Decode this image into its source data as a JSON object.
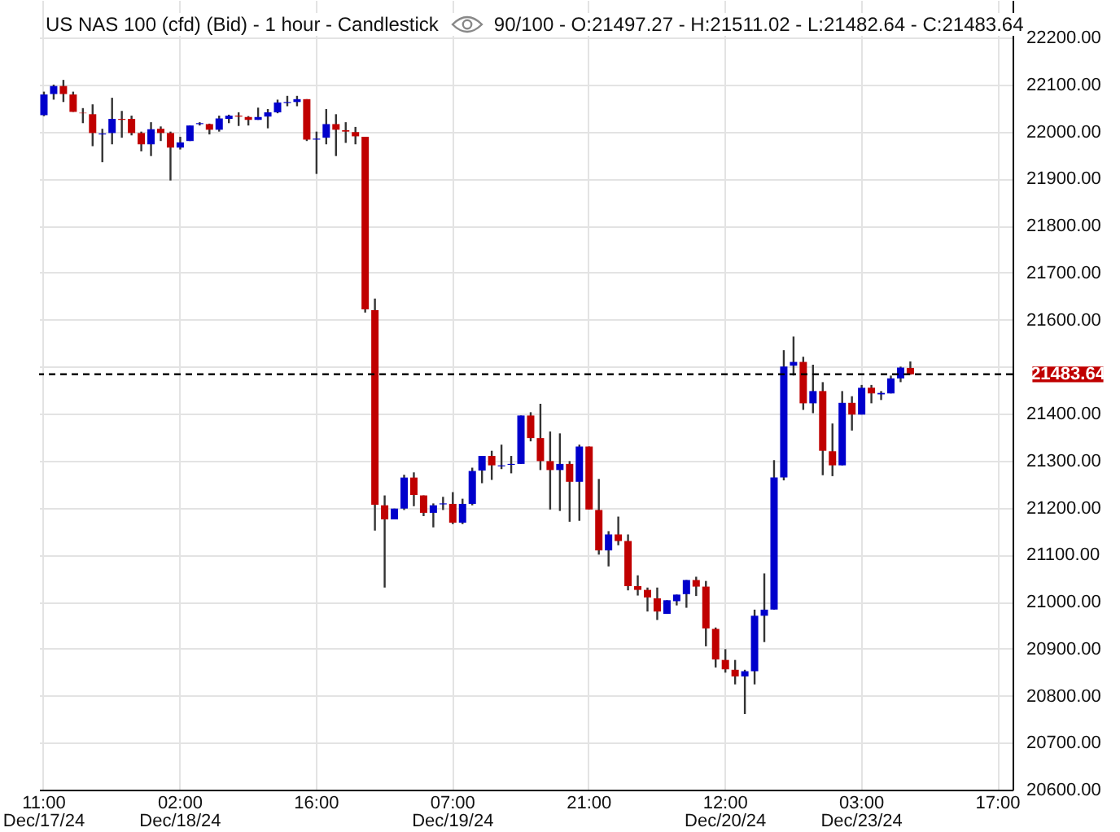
{
  "chart_data": {
    "type": "candlestick",
    "title": "US NAS 100 (cfd) (Bid) - 1 hour - Candlestick",
    "subtitle": "90/100 - O:21497.27 - H:21511.02 - L:21482.64 - C:21483.64",
    "categories": [
      "11:00\nDec/17/24",
      null,
      null,
      null,
      null,
      null,
      null,
      null,
      null,
      null,
      null,
      null,
      null,
      null,
      "02:00\nDec/18/24",
      null,
      null,
      null,
      null,
      null,
      null,
      null,
      null,
      null,
      null,
      null,
      null,
      null,
      "16:00",
      null,
      null,
      null,
      null,
      null,
      null,
      null,
      null,
      null,
      null,
      null,
      null,
      null,
      "07:00\nDec/19/24",
      null,
      null,
      null,
      null,
      null,
      null,
      null,
      null,
      null,
      null,
      null,
      null,
      null,
      "21:00",
      null,
      null,
      null,
      null,
      null,
      null,
      null,
      null,
      null,
      null,
      null,
      null,
      null,
      "12:00\nDec/20/24",
      null,
      null,
      null,
      null,
      null,
      null,
      null,
      null,
      null,
      null,
      null,
      null,
      null,
      "03:00\nDec/23/24",
      null,
      null,
      null,
      null,
      null,
      null,
      null,
      null,
      null,
      null,
      null,
      null,
      null,
      "17:00",
      null
    ],
    "ohlc": [
      [
        22035,
        22085,
        22033,
        22079
      ],
      [
        22080,
        22100,
        22068,
        22097
      ],
      [
        22097,
        22110,
        22063,
        22080
      ],
      [
        22079,
        22085,
        22042,
        22042
      ],
      [
        22040,
        22050,
        22018,
        22039
      ],
      [
        22037,
        22058,
        21969,
        21997
      ],
      [
        21994,
        22006,
        21935,
        21996
      ],
      [
        21997,
        22072,
        21973,
        22027
      ],
      [
        22027,
        22044,
        21987,
        22025
      ],
      [
        22027,
        22034,
        21992,
        21997
      ],
      [
        21997,
        22000,
        21958,
        21973
      ],
      [
        21973,
        22020,
        21948,
        22005
      ],
      [
        22006,
        22011,
        21980,
        21997
      ],
      [
        21997,
        22000,
        21896,
        21966
      ],
      [
        21966,
        21989,
        21962,
        21977
      ],
      [
        21980,
        22013,
        21980,
        22013
      ],
      [
        22016,
        22020,
        22013,
        22018
      ],
      [
        22016,
        22017,
        21994,
        22004
      ],
      [
        22004,
        22034,
        22000,
        22028
      ],
      [
        22027,
        22036,
        22018,
        22034
      ],
      [
        22034,
        22041,
        22012,
        22032
      ],
      [
        22031,
        22033,
        22013,
        22025
      ],
      [
        22025,
        22051,
        22025,
        22031
      ],
      [
        22032,
        22048,
        22007,
        22041
      ],
      [
        22041,
        22068,
        22039,
        22062
      ],
      [
        22061,
        22076,
        22054,
        22063
      ],
      [
        22063,
        22076,
        22054,
        22069
      ],
      [
        22069,
        22069,
        21980,
        21983
      ],
      [
        21983,
        22000,
        21910,
        21985
      ],
      [
        21987,
        22048,
        21973,
        22016
      ],
      [
        22016,
        22037,
        21948,
        22004
      ],
      [
        22003,
        22020,
        21976,
        22000
      ],
      [
        21999,
        22010,
        21973,
        21990
      ],
      [
        21989,
        21989,
        21615,
        21622
      ],
      [
        21620,
        21645,
        21151,
        21206
      ],
      [
        21205,
        21226,
        21030,
        21175
      ],
      [
        21175,
        21198,
        21175,
        21198
      ],
      [
        21198,
        21270,
        21195,
        21264
      ],
      [
        21264,
        21275,
        21203,
        21227
      ],
      [
        21226,
        21226,
        21182,
        21189
      ],
      [
        21189,
        21209,
        21158,
        21205
      ],
      [
        21207,
        21223,
        21195,
        21209
      ],
      [
        21208,
        21233,
        21165,
        21168
      ],
      [
        21168,
        21219,
        21165,
        21208
      ],
      [
        21208,
        21285,
        21205,
        21278
      ],
      [
        21279,
        21310,
        21252,
        21310
      ],
      [
        21310,
        21321,
        21259,
        21290
      ],
      [
        21288,
        21334,
        21282,
        21290
      ],
      [
        21291,
        21310,
        21273,
        21293
      ],
      [
        21293,
        21396,
        21293,
        21396
      ],
      [
        21396,
        21403,
        21341,
        21348
      ],
      [
        21348,
        21421,
        21280,
        21299
      ],
      [
        21299,
        21362,
        21196,
        21280
      ],
      [
        21280,
        21358,
        21193,
        21293
      ],
      [
        21293,
        21299,
        21170,
        21255
      ],
      [
        21255,
        21334,
        21172,
        21330
      ],
      [
        21330,
        21330,
        21196,
        21196
      ],
      [
        21195,
        21261,
        21100,
        21109
      ],
      [
        21109,
        21150,
        21075,
        21143
      ],
      [
        21143,
        21181,
        21120,
        21129
      ],
      [
        21129,
        21143,
        21024,
        21033
      ],
      [
        21033,
        21056,
        21013,
        21025
      ],
      [
        21025,
        21030,
        20979,
        21009
      ],
      [
        21007,
        21030,
        20961,
        20979
      ],
      [
        20974,
        21003,
        20974,
        21003
      ],
      [
        21001,
        21015,
        20992,
        21015
      ],
      [
        21016,
        21046,
        20987,
        21046
      ],
      [
        21046,
        21053,
        21012,
        21032
      ],
      [
        21032,
        21044,
        20905,
        20943
      ],
      [
        20942,
        20945,
        20860,
        20877
      ],
      [
        20876,
        20899,
        20849,
        20856
      ],
      [
        20855,
        20876,
        20824,
        20841
      ],
      [
        20841,
        20855,
        20761,
        20852
      ],
      [
        20852,
        20983,
        20824,
        20970
      ],
      [
        20970,
        21060,
        20914,
        20983
      ],
      [
        20983,
        21301,
        20983,
        21264
      ],
      [
        21264,
        21535,
        21258,
        21500
      ],
      [
        21502,
        21564,
        21481,
        21510
      ],
      [
        21510,
        21521,
        21408,
        21422
      ],
      [
        21422,
        21504,
        21401,
        21448
      ],
      [
        21448,
        21467,
        21269,
        21321
      ],
      [
        21320,
        21379,
        21267,
        21290
      ],
      [
        21290,
        21448,
        21290,
        21423
      ],
      [
        21423,
        21437,
        21364,
        21398
      ],
      [
        21398,
        21461,
        21398,
        21455
      ],
      [
        21455,
        21461,
        21422,
        21443
      ],
      [
        21441,
        21448,
        21429,
        21444
      ],
      [
        21443,
        21481,
        21443,
        21475
      ],
      [
        21475,
        21500,
        21467,
        21498
      ],
      [
        21497.27,
        21511.02,
        21482.64,
        21483.64
      ],
      null,
      null,
      null,
      null,
      null,
      null,
      null,
      null,
      null,
      null
    ],
    "colors": [
      "#0000cc",
      "#0000cc",
      "#c00000",
      "#c00000",
      "#c00000",
      "#c00000",
      "#0000cc",
      "#0000cc",
      "#c00000",
      "#c00000",
      "#c00000",
      "#0000cc",
      "#c00000",
      "#c00000",
      "#0000cc",
      "#0000cc",
      "#0000cc",
      "#c00000",
      "#0000cc",
      "#0000cc",
      "#c00000",
      "#c00000",
      "#0000cc",
      "#0000cc",
      "#0000cc",
      "#0000cc",
      "#0000cc",
      "#c00000",
      "#0000cc",
      "#0000cc",
      "#c00000",
      "#c00000",
      "#c00000",
      "#c00000",
      "#c00000",
      "#c00000",
      "#0000cc",
      "#0000cc",
      "#c00000",
      "#c00000",
      "#0000cc",
      "#0000cc",
      "#c00000",
      "#0000cc",
      "#0000cc",
      "#0000cc",
      "#c00000",
      "#0000cc",
      "#0000cc",
      "#0000cc",
      "#c00000",
      "#c00000",
      "#c00000",
      "#0000cc",
      "#c00000",
      "#0000cc",
      "#c00000",
      "#c00000",
      "#0000cc",
      "#c00000",
      "#c00000",
      "#c00000",
      "#c00000",
      "#c00000",
      "#0000cc",
      "#0000cc",
      "#0000cc",
      "#c00000",
      "#c00000",
      "#c00000",
      "#c00000",
      "#c00000",
      "#0000cc",
      "#0000cc",
      "#0000cc",
      "#0000cc",
      "#0000cc",
      "#0000cc",
      "#c00000",
      "#0000cc",
      "#c00000",
      "#c00000",
      "#0000cc",
      "#c00000",
      "#0000cc",
      "#c00000",
      "#0000cc",
      "#0000cc",
      "#0000cc",
      "#c00000",
      null,
      null,
      null,
      null,
      null,
      null,
      null,
      null,
      null,
      null
    ],
    "ylim": [
      20600,
      22280
    ],
    "yticks": [
      {
        "value": 20600,
        "label": "20600.00"
      },
      {
        "value": 20700,
        "label": "20700.00"
      },
      {
        "value": 20800,
        "label": "20800.00"
      },
      {
        "value": 20900,
        "label": "20900.00"
      },
      {
        "value": 21000,
        "label": "21000.00"
      },
      {
        "value": 21100,
        "label": "21100.00"
      },
      {
        "value": 21200,
        "label": "21200.00"
      },
      {
        "value": 21300,
        "label": "21300.00"
      },
      {
        "value": 21400,
        "label": "21400.00"
      },
      {
        "value": 21500,
        "label": null
      },
      {
        "value": 21600,
        "label": "21600.00"
      },
      {
        "value": 21700,
        "label": "21700.00"
      },
      {
        "value": 21800,
        "label": "21800.00"
      },
      {
        "value": 21900,
        "label": "21900.00"
      },
      {
        "value": 22000,
        "label": "22000.00"
      },
      {
        "value": 22100,
        "label": "22100.00"
      },
      {
        "value": 22200,
        "label": "22200.00"
      }
    ],
    "ref_lines": [
      {
        "axis": "y",
        "value": 21483.64,
        "label": "21483.64",
        "color": "#000000",
        "line_style": "dashed"
      }
    ],
    "grid": true
  }
}
